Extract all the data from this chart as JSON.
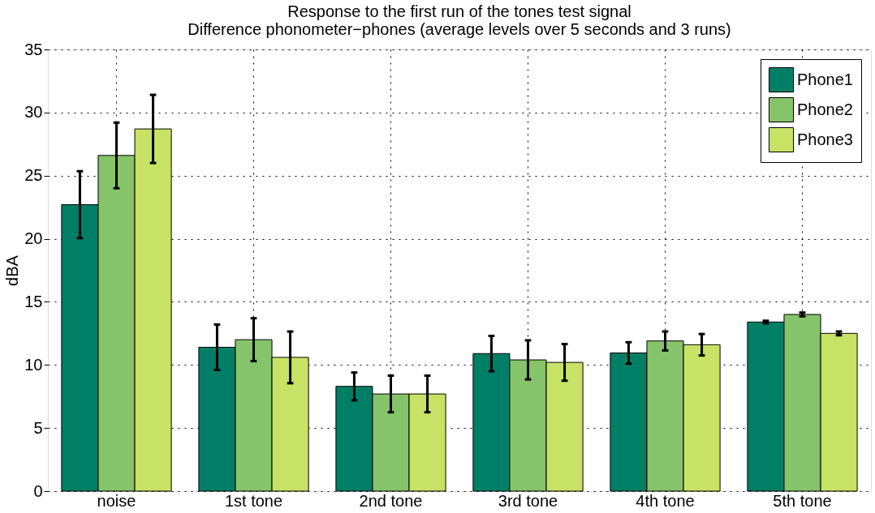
{
  "chart_data": {
    "type": "bar",
    "title": [
      "Response to the first run of the tones test signal",
      "Difference phonometer−phones (average levels over 5 seconds and 3 runs)"
    ],
    "ylabel": "dBA",
    "categories": [
      "noise",
      "1st tone",
      "2nd tone",
      "3rd tone",
      "4th tone",
      "5th tone"
    ],
    "series": [
      {
        "name": "Phone1",
        "color": "#007f66",
        "values": [
          22.7,
          11.4,
          8.3,
          10.9,
          10.95,
          13.4
        ],
        "errors": [
          2.65,
          1.8,
          1.1,
          1.4,
          0.85,
          0.1
        ]
      },
      {
        "name": "Phone2",
        "color": "#85c46a",
        "values": [
          26.6,
          12.0,
          7.7,
          10.4,
          11.9,
          14.0
        ],
        "errors": [
          2.6,
          1.7,
          1.45,
          1.55,
          0.75,
          0.15
        ]
      },
      {
        "name": "Phone3",
        "color": "#c8e265",
        "values": [
          28.7,
          10.6,
          7.7,
          10.2,
          11.6,
          12.5
        ],
        "errors": [
          2.7,
          2.05,
          1.45,
          1.45,
          0.85,
          0.15
        ]
      }
    ],
    "ylim": [
      0,
      35
    ],
    "yticks": [
      0,
      5,
      10,
      15,
      20,
      25,
      30,
      35
    ],
    "grid": true,
    "legend": "top right"
  }
}
